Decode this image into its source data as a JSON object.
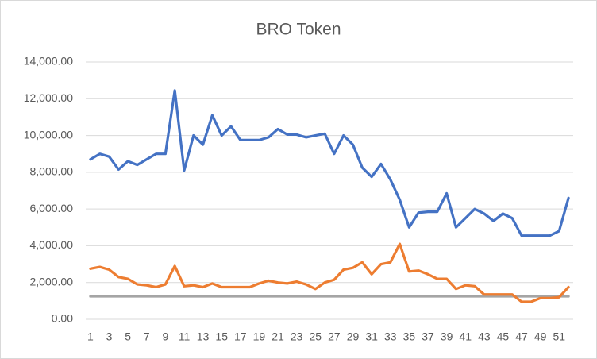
{
  "chart_data": {
    "type": "line",
    "title": "BRO Token",
    "categories": [
      1,
      null,
      3,
      null,
      5,
      null,
      7,
      null,
      9,
      null,
      11,
      null,
      13,
      null,
      15,
      null,
      17,
      null,
      19,
      null,
      21,
      null,
      23,
      null,
      25,
      null,
      27,
      null,
      29,
      null,
      31,
      null,
      33,
      null,
      35,
      null,
      37,
      null,
      39,
      null,
      41,
      null,
      43,
      null,
      45,
      null,
      47,
      null,
      49,
      null,
      51,
      null
    ],
    "series": [
      {
        "color": "#4472c4",
        "values": [
          8700,
          9000,
          8850,
          8150,
          8600,
          8400,
          8700,
          9000,
          9000,
          12450,
          8100,
          10000,
          9500,
          11100,
          10000,
          10500,
          9750,
          9750,
          9750,
          9900,
          10350,
          10050,
          10050,
          9900,
          10000,
          10100,
          9000,
          10000,
          9500,
          8250,
          7750,
          8450,
          7600,
          6500,
          5000,
          5800,
          5850,
          5850,
          6850,
          5000,
          5500,
          6000,
          5750,
          5350,
          5750,
          5500,
          4550,
          4550,
          4550,
          4550,
          4800,
          6600
        ]
      },
      {
        "color": "#ed7d31",
        "values": [
          2750,
          2850,
          2700,
          2300,
          2200,
          1900,
          1850,
          1750,
          1900,
          2900,
          1800,
          1850,
          1750,
          1950,
          1750,
          1750,
          1750,
          1750,
          1950,
          2100,
          2000,
          1950,
          2050,
          1900,
          1650,
          2000,
          2150,
          2700,
          2800,
          3100,
          2450,
          3000,
          3100,
          4100,
          2600,
          2650,
          2450,
          2200,
          2200,
          1650,
          1850,
          1800,
          1350,
          1350,
          1350,
          1350,
          950,
          950,
          1150,
          1150,
          1200,
          1750
        ]
      },
      {
        "color": "#a5a5a5",
        "values": [
          1250,
          1250,
          1250,
          1250,
          1250,
          1250,
          1250,
          1250,
          1250,
          1250,
          1250,
          1250,
          1250,
          1250,
          1250,
          1250,
          1250,
          1250,
          1250,
          1250,
          1250,
          1250,
          1250,
          1250,
          1250,
          1250,
          1250,
          1250,
          1250,
          1250,
          1250,
          1250,
          1250,
          1250,
          1250,
          1250,
          1250,
          1250,
          1250,
          1250,
          1250,
          1250,
          1250,
          1250,
          1250,
          1250,
          1250,
          1250,
          1250,
          1250,
          1250,
          1250
        ]
      }
    ],
    "ylim": [
      0,
      14000
    ],
    "yticks": [
      {
        "value": 0,
        "label": "0.00"
      },
      {
        "value": 2000,
        "label": "2,000.00"
      },
      {
        "value": 4000,
        "label": "4,000.00"
      },
      {
        "value": 6000,
        "label": "6,000.00"
      },
      {
        "value": 8000,
        "label": "8,000.00"
      },
      {
        "value": 10000,
        "label": "10,000.00"
      },
      {
        "value": 12000,
        "label": "12,000.00"
      },
      {
        "value": 14000,
        "label": "14,000.00"
      }
    ],
    "grid": true
  }
}
